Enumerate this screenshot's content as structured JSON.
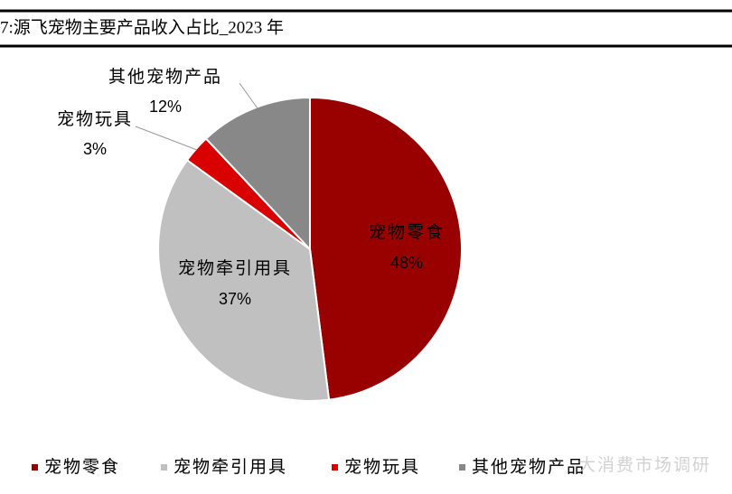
{
  "chart_data": {
    "type": "pie",
    "title": "7:源飞宠物主要产品收入占比_2023 年",
    "categories": [
      "宠物零食",
      "宠物牵引用具",
      "宠物玩具",
      "其他宠物产品"
    ],
    "values": [
      48,
      37,
      3,
      12
    ],
    "value_labels": [
      "48%",
      "37%",
      "3%",
      "12%"
    ],
    "colors": [
      "#990000",
      "#c0c0c0",
      "#d90000",
      "#888888"
    ],
    "legend": "bottom"
  },
  "watermark": "大消费市场调研"
}
